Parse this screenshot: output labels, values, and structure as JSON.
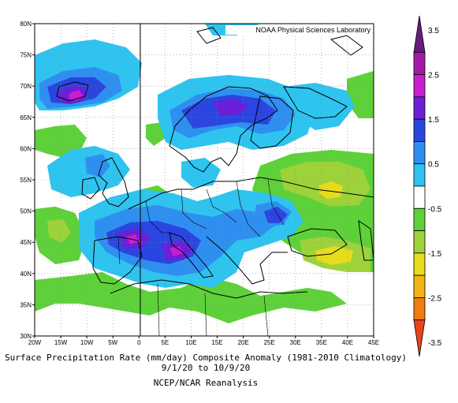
{
  "map": {
    "watermark": "NOAA Physical Sciences Laboratory",
    "lat_labels": [
      "80N",
      "75N",
      "70N",
      "65N",
      "60N",
      "55N",
      "50N",
      "45N",
      "40N",
      "35N",
      "30N"
    ],
    "lon_labels": [
      "20W",
      "15W",
      "10W",
      "5W",
      "0",
      "5E",
      "10E",
      "15E",
      "20E",
      "25E",
      "30E",
      "35E",
      "40E",
      "45E"
    ],
    "extent": {
      "lon_min": -20,
      "lon_max": 45,
      "lat_min": 30,
      "lat_max": 80
    }
  },
  "colorbar": {
    "tick_labels": [
      "3.5",
      "2.5",
      "1.5",
      "0.5",
      "-0.5",
      "-1.5",
      "-2.5",
      "-3.5"
    ],
    "bins": [
      {
        "from": 3.5,
        "to": 3.0,
        "color": "#6a1a7a"
      },
      {
        "from": 3.0,
        "to": 2.5,
        "color": "#a21aa4"
      },
      {
        "from": 2.5,
        "to": 2.0,
        "color": "#c81ecf"
      },
      {
        "from": 2.0,
        "to": 1.5,
        "color": "#6b1fd6"
      },
      {
        "from": 1.5,
        "to": 1.0,
        "color": "#2b45e0"
      },
      {
        "from": 1.0,
        "to": 0.5,
        "color": "#2f8ff0"
      },
      {
        "from": 0.5,
        "to": 0.0,
        "color": "#2ec4ef"
      },
      {
        "from": 0.0,
        "to": -0.5,
        "color": "#ffffff"
      },
      {
        "from": -0.5,
        "to": -1.0,
        "color": "#5ed13a"
      },
      {
        "from": -1.0,
        "to": -1.5,
        "color": "#9ed23a"
      },
      {
        "from": -1.5,
        "to": -2.0,
        "color": "#e6dc1c"
      },
      {
        "from": -2.0,
        "to": -2.5,
        "color": "#f0b414"
      },
      {
        "from": -2.5,
        "to": -3.0,
        "color": "#ee7d12"
      },
      {
        "from": -3.0,
        "to": -3.5,
        "color": "#e6441a"
      }
    ]
  },
  "caption": {
    "line1": "Surface Precipitation Rate (mm/day) Composite Anomaly (1981-2010 Climatology)",
    "line2": "9/1/20  to 10/9/20",
    "line3": "NCEP/NCAR Reanalysis"
  }
}
